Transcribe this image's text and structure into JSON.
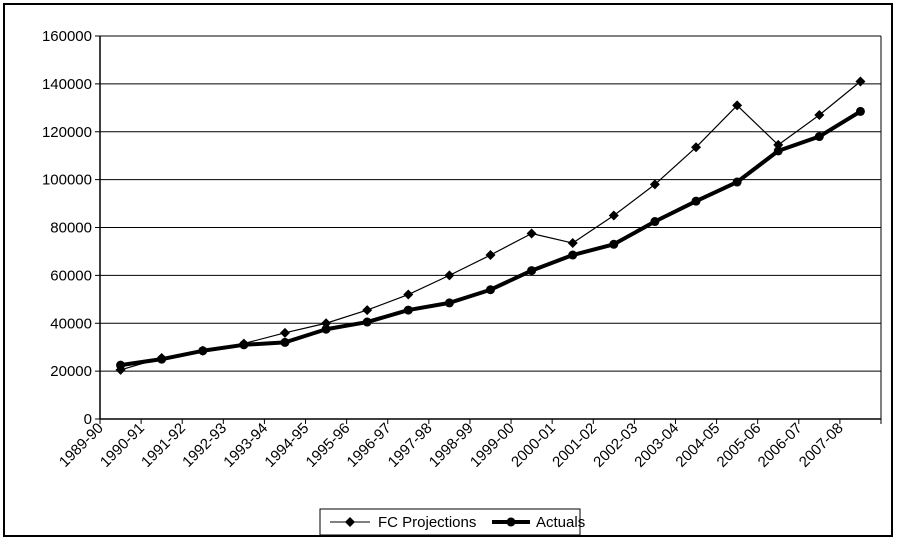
{
  "chart_data": {
    "type": "line",
    "title": "",
    "xlabel": "",
    "ylabel": "",
    "ylim": [
      0,
      160000
    ],
    "yticks": [
      0,
      20000,
      40000,
      60000,
      80000,
      100000,
      120000,
      140000,
      160000
    ],
    "grid": "horizontal",
    "legend_position": "bottom",
    "categories": [
      "1989-90",
      "1990-91",
      "1991-92",
      "1992-93",
      "1993-94",
      "1994-95",
      "1995-96",
      "1996-97",
      "1997-98",
      "1998-99",
      "1999-00",
      "2000-01",
      "2001-02",
      "2002-03",
      "2003-04",
      "2004-05",
      "2005-06",
      "2006-07",
      "2007-08"
    ],
    "series": [
      {
        "name": "FC Projections",
        "color": "#000000",
        "marker": "diamond",
        "line_weight": "thin",
        "values": [
          20500,
          25500,
          28500,
          31500,
          36000,
          40000,
          45500,
          52000,
          60000,
          68500,
          77500,
          73500,
          85000,
          98000,
          113500,
          131000,
          114500,
          127000,
          141000
        ]
      },
      {
        "name": "Actuals",
        "color": "#000000",
        "marker": "circle",
        "line_weight": "thick",
        "values": [
          22500,
          25000,
          28500,
          31000,
          32000,
          37500,
          40500,
          45500,
          48500,
          54000,
          62000,
          68500,
          73000,
          82500,
          91000,
          99000,
          112000,
          118000,
          128500
        ]
      }
    ]
  }
}
